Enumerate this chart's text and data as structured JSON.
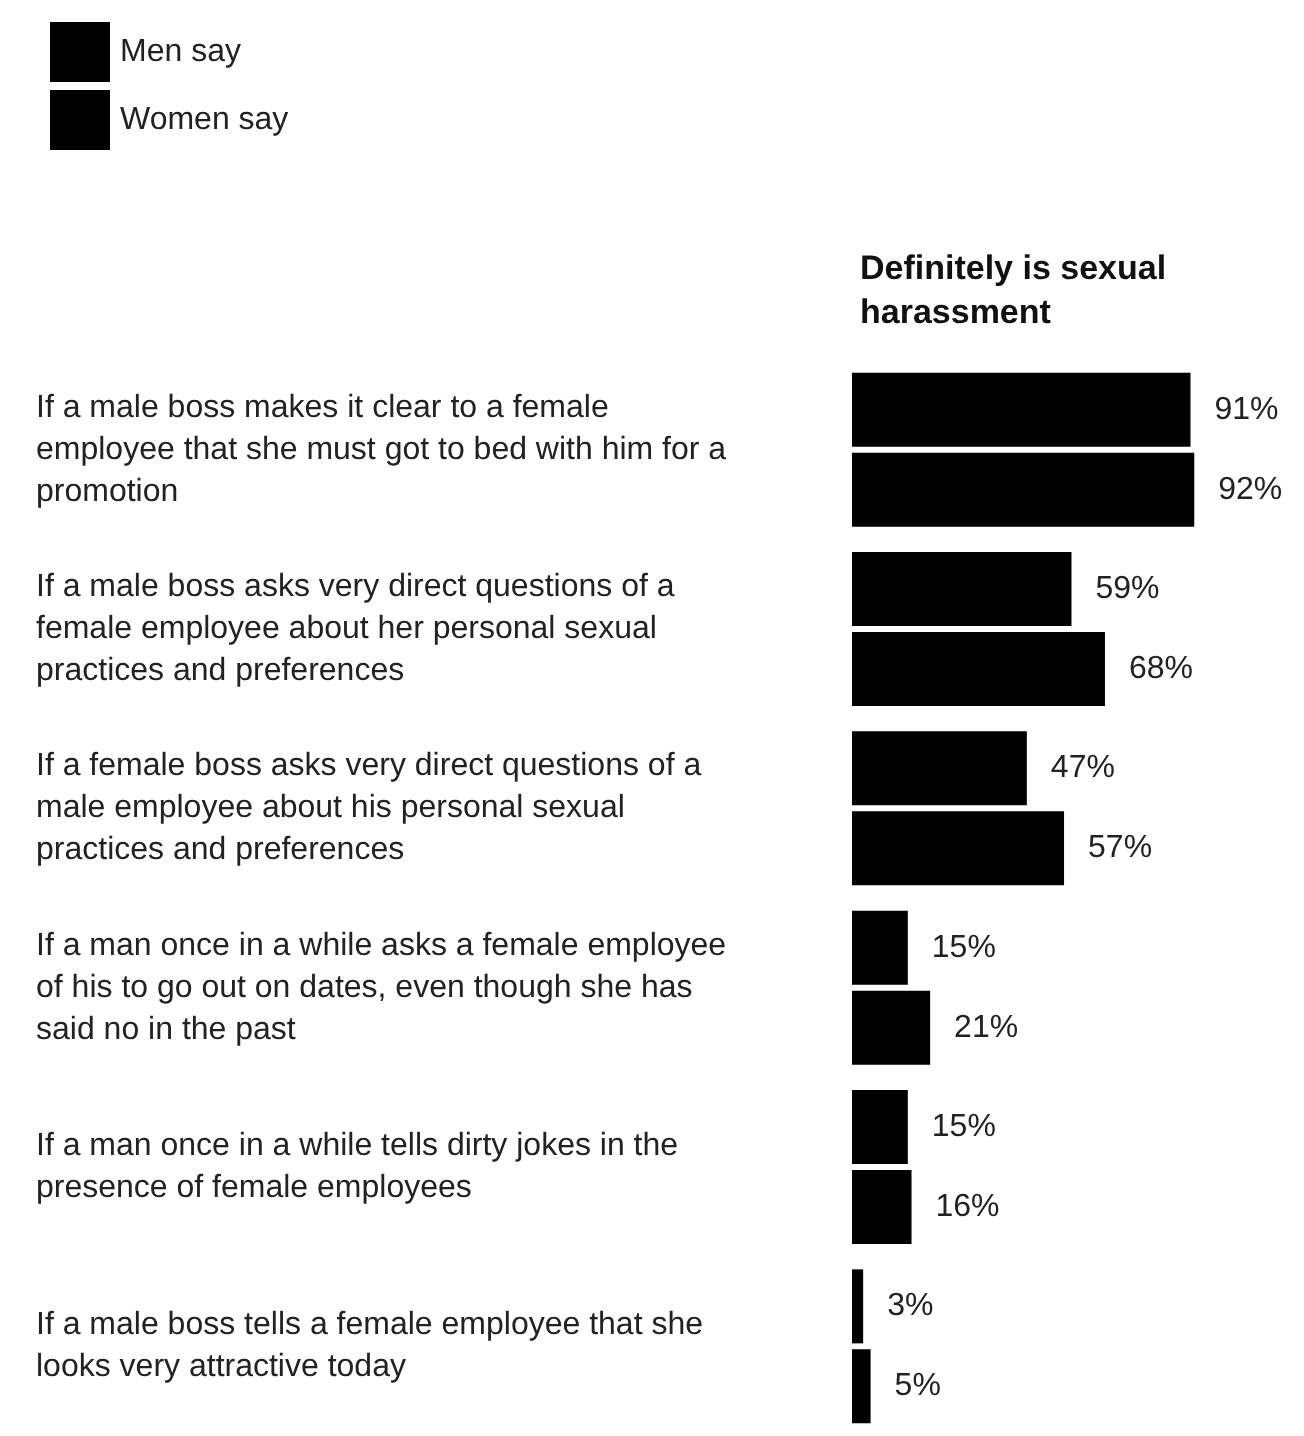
{
  "chart_data": {
    "type": "bar",
    "orientation": "horizontal",
    "title": "Definitely is sexual harassment",
    "legend": "top left",
    "categories": [
      "If a male boss makes it clear to a female employee that she must got to bed with him for a promotion",
      "If a male boss asks very direct questions of a female employee about her personal sexual practices and preferences",
      "If a female boss asks very direct questions of a male employee about his personal sexual practices and preferences",
      "If a man once in a while asks a female employee of his to go out on dates, even though she has said no in the past",
      "If a man once in a while tells dirty jokes in the presence of female employees",
      "If a male boss tells a female employee that she looks very attractive today"
    ],
    "series": [
      {
        "name": "Men say",
        "color": "#000000",
        "values": [
          91,
          59,
          47,
          15,
          15,
          3
        ],
        "value_labels": [
          "91%",
          "59%",
          "47%",
          "15%",
          "15%",
          "3%"
        ]
      },
      {
        "name": "Women say",
        "color": "#000000",
        "values": [
          92,
          68,
          57,
          21,
          16,
          5
        ],
        "value_labels": [
          "92%",
          "68%",
          "57%",
          "21%",
          "16%",
          "5%"
        ]
      }
    ]
  }
}
